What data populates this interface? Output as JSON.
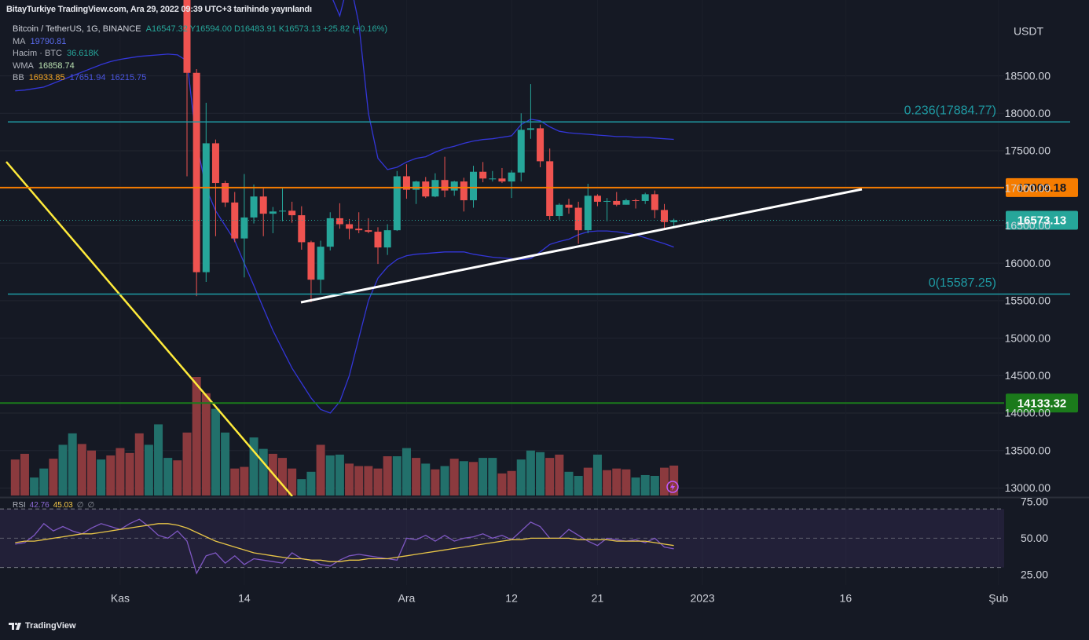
{
  "header": {
    "title": "BitayTurkiye TradingView.com, Ara 29, 2022 09:39 UTC+3 tarihinde yayınlandı"
  },
  "legend": {
    "symbol": "Bitcoin / TetherUS, 1G, BINANCE",
    "quote": "A16547.32 Y16594.00 D16483.91 K16573.13 +25.82 (+0.16%)",
    "indicators": [
      {
        "name": "MA",
        "values": [
          "19790.81"
        ],
        "colors": [
          "#5b6cf0"
        ]
      },
      {
        "name": "Hacim · BTC",
        "values": [
          "36.618K"
        ],
        "colors": [
          "#26a69a"
        ]
      },
      {
        "name": "WMA",
        "values": [
          "16858.74"
        ],
        "colors": [
          "#b9e0b0"
        ]
      },
      {
        "name": "BB",
        "values": [
          "16933.85",
          "17651.94",
          "16215.75"
        ],
        "colors": [
          "#f5a623",
          "#4a55e0",
          "#4a55e0"
        ]
      }
    ],
    "rsi": {
      "name": "RSI",
      "values": [
        "42.76",
        "45.03",
        "∅",
        "∅"
      ],
      "colors": [
        "#8e6ad8",
        "#f7c948",
        "#9598a1",
        "#9598a1"
      ]
    }
  },
  "footer": {
    "brand": "TradingView"
  },
  "chart_data": {
    "type": "candlestick",
    "currency": "USDT",
    "up_color": "#26a69a",
    "down_color": "#ef5350",
    "grid": true,
    "ylim": [
      12900,
      19250
    ],
    "yticks": [
      {
        "value": 13000,
        "label": "13000.00"
      },
      {
        "value": 13500,
        "label": "13500.00"
      },
      {
        "value": 14000,
        "label": "14000.00"
      },
      {
        "value": 14500,
        "label": "14500.00"
      },
      {
        "value": 15000,
        "label": "15000.00"
      },
      {
        "value": 15500,
        "label": "15500.00"
      },
      {
        "value": 16000,
        "label": "16000.00"
      },
      {
        "value": 16500,
        "label": "16500.00"
      },
      {
        "value": 17000,
        "label": "17000.00"
      },
      {
        "value": 17500,
        "label": "17500.00"
      },
      {
        "value": 18000,
        "label": "18000.00"
      },
      {
        "value": 18500,
        "label": "18500.00"
      }
    ],
    "xticks": [
      {
        "value": "2022-11-01",
        "label": "Kas"
      },
      {
        "value": "2022-11-14",
        "label": "14"
      },
      {
        "value": "2022-12-01",
        "label": "Ara"
      },
      {
        "value": "2022-12-12",
        "label": "12"
      },
      {
        "value": "2022-12-21",
        "label": "21"
      },
      {
        "value": "2023-01-01",
        "label": "2023"
      },
      {
        "value": "2023-01-16",
        "label": "16"
      },
      {
        "value": "2023-02-01",
        "label": "Şub"
      }
    ],
    "x": [
      "2022-10-21",
      "2022-10-22",
      "2022-10-23",
      "2022-10-24",
      "2022-10-25",
      "2022-10-26",
      "2022-10-27",
      "2022-10-28",
      "2022-10-29",
      "2022-10-30",
      "2022-10-31",
      "2022-11-01",
      "2022-11-02",
      "2022-11-03",
      "2022-11-04",
      "2022-11-05",
      "2022-11-06",
      "2022-11-07",
      "2022-11-08",
      "2022-11-09",
      "2022-11-10",
      "2022-11-11",
      "2022-11-12",
      "2022-11-13",
      "2022-11-14",
      "2022-11-15",
      "2022-11-16",
      "2022-11-17",
      "2022-11-18",
      "2022-11-19",
      "2022-11-20",
      "2022-11-21",
      "2022-11-22",
      "2022-11-23",
      "2022-11-24",
      "2022-11-25",
      "2022-11-26",
      "2022-11-27",
      "2022-11-28",
      "2022-11-29",
      "2022-11-30",
      "2022-12-01",
      "2022-12-02",
      "2022-12-03",
      "2022-12-04",
      "2022-12-05",
      "2022-12-06",
      "2022-12-07",
      "2022-12-08",
      "2022-12-09",
      "2022-12-10",
      "2022-12-11",
      "2022-12-12",
      "2022-12-13",
      "2022-12-14",
      "2022-12-15",
      "2022-12-16",
      "2022-12-17",
      "2022-12-18",
      "2022-12-19",
      "2022-12-20",
      "2022-12-21",
      "2022-12-22",
      "2022-12-23",
      "2022-12-24",
      "2022-12-25",
      "2022-12-26",
      "2022-12-27",
      "2022-12-28",
      "2022-12-29"
    ],
    "ohlc": [
      null,
      null,
      null,
      null,
      null,
      null,
      null,
      null,
      null,
      null,
      null,
      null,
      null,
      null,
      null,
      null,
      null,
      null,
      [
        19540,
        19700,
        17160,
        18540
      ],
      [
        18540,
        18590,
        15560,
        15880
      ],
      [
        15880,
        18140,
        15750,
        17600
      ],
      [
        17600,
        17650,
        16360,
        17070
      ],
      [
        17070,
        17100,
        16750,
        16810
      ],
      [
        16810,
        16950,
        16280,
        16330
      ],
      [
        16330,
        17190,
        15810,
        16610
      ],
      [
        16610,
        17050,
        16530,
        16890
      ],
      [
        16890,
        17000,
        16360,
        16660
      ],
      [
        16660,
        16750,
        16400,
        16690
      ],
      [
        16690,
        17000,
        16560,
        16700
      ],
      [
        16700,
        16820,
        16540,
        16640
      ],
      [
        16640,
        16760,
        16180,
        16280
      ],
      [
        16280,
        16300,
        15480,
        15780
      ],
      [
        15780,
        16300,
        15600,
        16220
      ],
      [
        16220,
        16680,
        16170,
        16600
      ],
      [
        16600,
        16800,
        16460,
        16520
      ],
      [
        16520,
        16590,
        16320,
        16460
      ],
      [
        16460,
        16680,
        16400,
        16440
      ],
      [
        16440,
        16600,
        16400,
        16420
      ],
      [
        16420,
        16480,
        15990,
        16210
      ],
      [
        16210,
        16520,
        16110,
        16440
      ],
      [
        16440,
        17230,
        16430,
        17160
      ],
      [
        17160,
        17320,
        16860,
        16980
      ],
      [
        16980,
        17100,
        16790,
        17090
      ],
      [
        17090,
        17150,
        16870,
        16890
      ],
      [
        16890,
        17200,
        16880,
        17110
      ],
      [
        17110,
        17420,
        16880,
        16970
      ],
      [
        16970,
        17100,
        16900,
        17090
      ],
      [
        17090,
        17140,
        16690,
        16840
      ],
      [
        16840,
        17300,
        16740,
        17220
      ],
      [
        17220,
        17350,
        17080,
        17130
      ],
      [
        17130,
        17230,
        17090,
        17130
      ],
      [
        17130,
        17270,
        17070,
        17090
      ],
      [
        17090,
        17240,
        16870,
        17210
      ],
      [
        17210,
        18000,
        17090,
        17780
      ],
      [
        17780,
        18390,
        17660,
        17800
      ],
      [
        17800,
        17850,
        17280,
        17360
      ],
      [
        17360,
        17530,
        16580,
        16630
      ],
      [
        16630,
        16800,
        16580,
        16780
      ],
      [
        16780,
        16860,
        16660,
        16740
      ],
      [
        16740,
        16820,
        16260,
        16440
      ],
      [
        16440,
        17060,
        16400,
        16900
      ],
      [
        16900,
        16920,
        16760,
        16820
      ],
      [
        16820,
        16870,
        16560,
        16830
      ],
      [
        16830,
        16950,
        16760,
        16780
      ],
      [
        16780,
        16860,
        16780,
        16840
      ],
      [
        16840,
        16860,
        16730,
        16830
      ],
      [
        16830,
        16940,
        16790,
        16920
      ],
      [
        16920,
        16970,
        16600,
        16710
      ],
      [
        16710,
        16790,
        16470,
        16550
      ],
      [
        16547.32,
        16594,
        16483.91,
        16573.13
      ]
    ],
    "bollinger": {
      "color": "#3336d8",
      "upper": [
        19900,
        19950,
        20000,
        20100,
        20300,
        20500,
        20700,
        20850,
        21000,
        21100,
        21200,
        21300,
        21350,
        21400,
        21450,
        21500,
        21550,
        21600,
        21800,
        22300,
        22400,
        22300,
        22200,
        22100,
        22000,
        21900,
        21700,
        21500,
        21200,
        20900,
        20500,
        20200,
        19900,
        19600,
        19300,
        19800,
        19200,
        18000,
        17400,
        17250,
        17280,
        17350,
        17400,
        17420,
        17480,
        17530,
        17560,
        17600,
        17630,
        17650,
        17660,
        17680,
        17700,
        17850,
        17920,
        17900,
        17820,
        17760,
        17740,
        17730,
        17720,
        17710,
        17700,
        17690,
        17690,
        17680,
        17680,
        17670,
        17660,
        17651.94
      ],
      "lower": [
        18300,
        18310,
        18330,
        18350,
        18400,
        18450,
        18500,
        18550,
        18600,
        18650,
        18690,
        18720,
        18740,
        18760,
        18770,
        18780,
        18790,
        18780,
        18700,
        17600,
        17000,
        16700,
        16500,
        16300,
        16000,
        15700,
        15400,
        15100,
        14850,
        14600,
        14400,
        14200,
        14050,
        14000,
        14150,
        14500,
        15000,
        15500,
        15800,
        15950,
        16050,
        16100,
        16120,
        16130,
        16140,
        16150,
        16150,
        16150,
        16120,
        16100,
        16080,
        16070,
        16060,
        16050,
        16060,
        16150,
        16250,
        16290,
        16320,
        16380,
        16420,
        16430,
        16430,
        16420,
        16400,
        16380,
        16340,
        16300,
        16260,
        16215.75
      ]
    },
    "volume": {
      "values": [
        44,
        51,
        22,
        33,
        45,
        62,
        76,
        63,
        55,
        44,
        49,
        58,
        52,
        76,
        62,
        87,
        46,
        43,
        77,
        145,
        125,
        106,
        77,
        33,
        35,
        71,
        57,
        51,
        46,
        33,
        20,
        29,
        62,
        49,
        50,
        39,
        36,
        36,
        33,
        48,
        48,
        58,
        46,
        39,
        32,
        36,
        45,
        42,
        41,
        46,
        46,
        27,
        30,
        44,
        55,
        53,
        46,
        50,
        29,
        24,
        34,
        50,
        31,
        33,
        32,
        22,
        25,
        24,
        34,
        36.618
      ],
      "colors": [
        "#8b3a3e",
        "#8b3a3e",
        "#22706b",
        "#22706b",
        "#8b3a3e",
        "#22706b",
        "#22706b",
        "#8b3a3e",
        "#8b3a3e",
        "#22706b",
        "#8b3a3e",
        "#8b3a3e",
        "#8b3a3e",
        "#8b3a3e",
        "#22706b",
        "#22706b",
        "#22706b",
        "#8b3a3e",
        "#8b3a3e",
        "#8b3a3e",
        "#8b3a3e",
        "#22706b",
        "#22706b",
        "#8b3a3e",
        "#8b3a3e",
        "#22706b",
        "#22706b",
        "#8b3a3e",
        "#8b3a3e",
        "#8b3a3e",
        "#22706b",
        "#22706b",
        "#8b3a3e",
        "#22706b",
        "#22706b",
        "#8b3a3e",
        "#8b3a3e",
        "#8b3a3e",
        "#8b3a3e",
        "#8b3a3e",
        "#22706b",
        "#22706b",
        "#8b3a3e",
        "#22706b",
        "#8b3a3e",
        "#22706b",
        "#8b3a3e",
        "#22706b",
        "#8b3a3e",
        "#22706b",
        "#22706b",
        "#8b3a3e",
        "#8b3a3e",
        "#22706b",
        "#22706b",
        "#22706b",
        "#8b3a3e",
        "#8b3a3e",
        "#22706b",
        "#22706b",
        "#8b3a3e",
        "#22706b",
        "#8b3a3e",
        "#8b3a3e",
        "#8b3a3e",
        "#22706b",
        "#22706b",
        "#22706b",
        "#8b3a3e",
        "#8b3a3e"
      ]
    },
    "fib_levels": [
      {
        "value": 17884.77,
        "label": "0.236(17884.77)",
        "color": "#1e9aa3"
      },
      {
        "value": 15587.25,
        "label": "0(15587.25)",
        "color": "#1e9aa3"
      }
    ],
    "hlines": [
      {
        "value": 17009.18,
        "color": "#f57c00",
        "text_color": "#131722"
      },
      {
        "value": 14133.32,
        "color": "#1b7a1b",
        "text_color": "#ffffff"
      }
    ],
    "rsi": {
      "color": "#7e57c2",
      "ma_color": "#e8c547",
      "ylim": [
        18,
        76
      ],
      "yticks": [
        {
          "value": 25,
          "label": "25.00"
        },
        {
          "value": 50,
          "label": "50.00"
        },
        {
          "value": 75,
          "label": "75.00"
        }
      ],
      "band": [
        30,
        70
      ],
      "values": [
        46,
        47,
        52,
        60,
        55,
        58,
        55,
        53,
        57,
        60,
        58,
        56,
        60,
        63,
        58,
        52,
        50,
        55,
        48,
        26,
        38,
        40,
        33,
        38,
        32,
        36,
        35,
        34,
        33,
        40,
        36,
        35,
        32,
        31,
        35,
        38,
        39,
        38,
        37,
        36,
        35,
        50,
        49,
        52,
        48,
        52,
        48,
        50,
        51,
        53,
        50,
        52,
        49,
        55,
        61,
        58,
        50,
        50,
        56,
        52,
        48,
        45,
        50,
        49,
        48,
        49,
        47,
        50,
        44,
        42.76
      ],
      "ma": [
        47,
        48,
        48,
        49,
        50,
        51,
        52,
        53,
        53,
        54,
        55,
        56,
        57,
        58,
        59,
        60,
        60,
        59,
        57,
        54,
        51,
        48,
        46,
        44,
        42,
        40,
        39,
        38,
        37,
        36,
        36,
        35,
        35,
        34,
        34,
        35,
        35,
        36,
        36,
        36,
        37,
        38,
        39,
        40,
        41,
        42,
        43,
        44,
        45,
        46,
        47,
        48,
        49,
        49,
        50,
        50,
        50,
        50,
        50,
        49,
        49,
        49,
        49,
        48,
        48,
        48,
        48,
        47,
        46,
        45.03
      ]
    }
  }
}
